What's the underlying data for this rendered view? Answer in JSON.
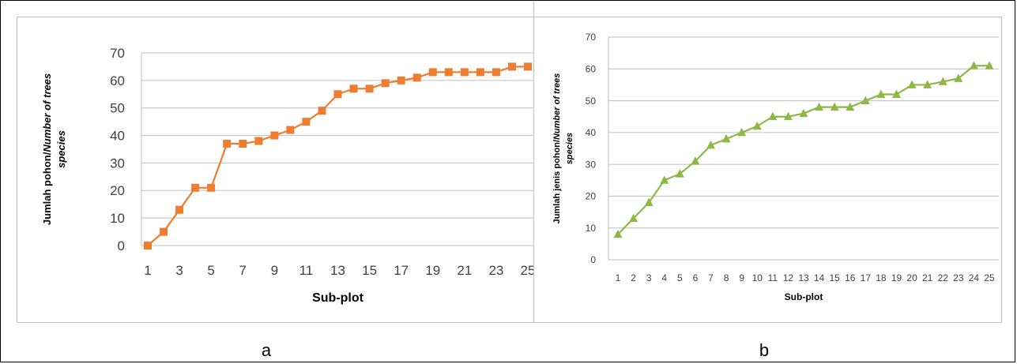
{
  "captions": {
    "a": "a",
    "b": "b"
  },
  "colors": {
    "series_a": "#ED7D31",
    "series_b": "#8DB848",
    "grid": "#bfbfbf",
    "axis_text": "#404040"
  },
  "chart_data": [
    {
      "panel": "a",
      "type": "line",
      "marker": "square",
      "xlabel": "Sub-plot",
      "ylabel_parts": [
        "Jumlah pohon/",
        "Number of trees",
        "species"
      ],
      "ylim": [
        0,
        70
      ],
      "yticks": [
        0,
        10,
        20,
        30,
        40,
        50,
        60,
        70
      ],
      "x": [
        1,
        2,
        3,
        4,
        5,
        6,
        7,
        8,
        9,
        10,
        11,
        12,
        13,
        14,
        15,
        16,
        17,
        18,
        19,
        20,
        21,
        22,
        23,
        24,
        25
      ],
      "xtick_labels": [
        "1",
        "3",
        "5",
        "7",
        "9",
        "11",
        "13",
        "15",
        "17",
        "19",
        "21",
        "23",
        "25"
      ],
      "values": [
        0,
        5,
        13,
        21,
        21,
        37,
        37,
        38,
        40,
        42,
        45,
        49,
        55,
        57,
        57,
        59,
        60,
        61,
        63,
        63,
        63,
        63,
        63,
        65,
        65
      ],
      "grid": true
    },
    {
      "panel": "b",
      "type": "line",
      "marker": "triangle",
      "xlabel": "Sub-plot",
      "ylabel_parts": [
        "Jumlah jenis pohon/",
        "Number of trees",
        "species"
      ],
      "ylim": [
        0,
        70
      ],
      "yticks": [
        0,
        10,
        20,
        30,
        40,
        50,
        60,
        70
      ],
      "x": [
        1,
        2,
        3,
        4,
        5,
        6,
        7,
        8,
        9,
        10,
        11,
        12,
        13,
        14,
        15,
        16,
        17,
        18,
        19,
        20,
        21,
        22,
        23,
        24,
        25
      ],
      "xtick_labels": [
        "1",
        "2",
        "3",
        "4",
        "5",
        "6",
        "7",
        "8",
        "9",
        "10",
        "11",
        "12",
        "13",
        "14",
        "15",
        "16",
        "17",
        "18",
        "19",
        "20",
        "21",
        "22",
        "23",
        "24",
        "25"
      ],
      "values": [
        8,
        13,
        18,
        25,
        27,
        31,
        36,
        38,
        40,
        42,
        45,
        45,
        46,
        48,
        48,
        48,
        50,
        52,
        52,
        55,
        55,
        56,
        57,
        61,
        61
      ],
      "grid": true
    }
  ]
}
